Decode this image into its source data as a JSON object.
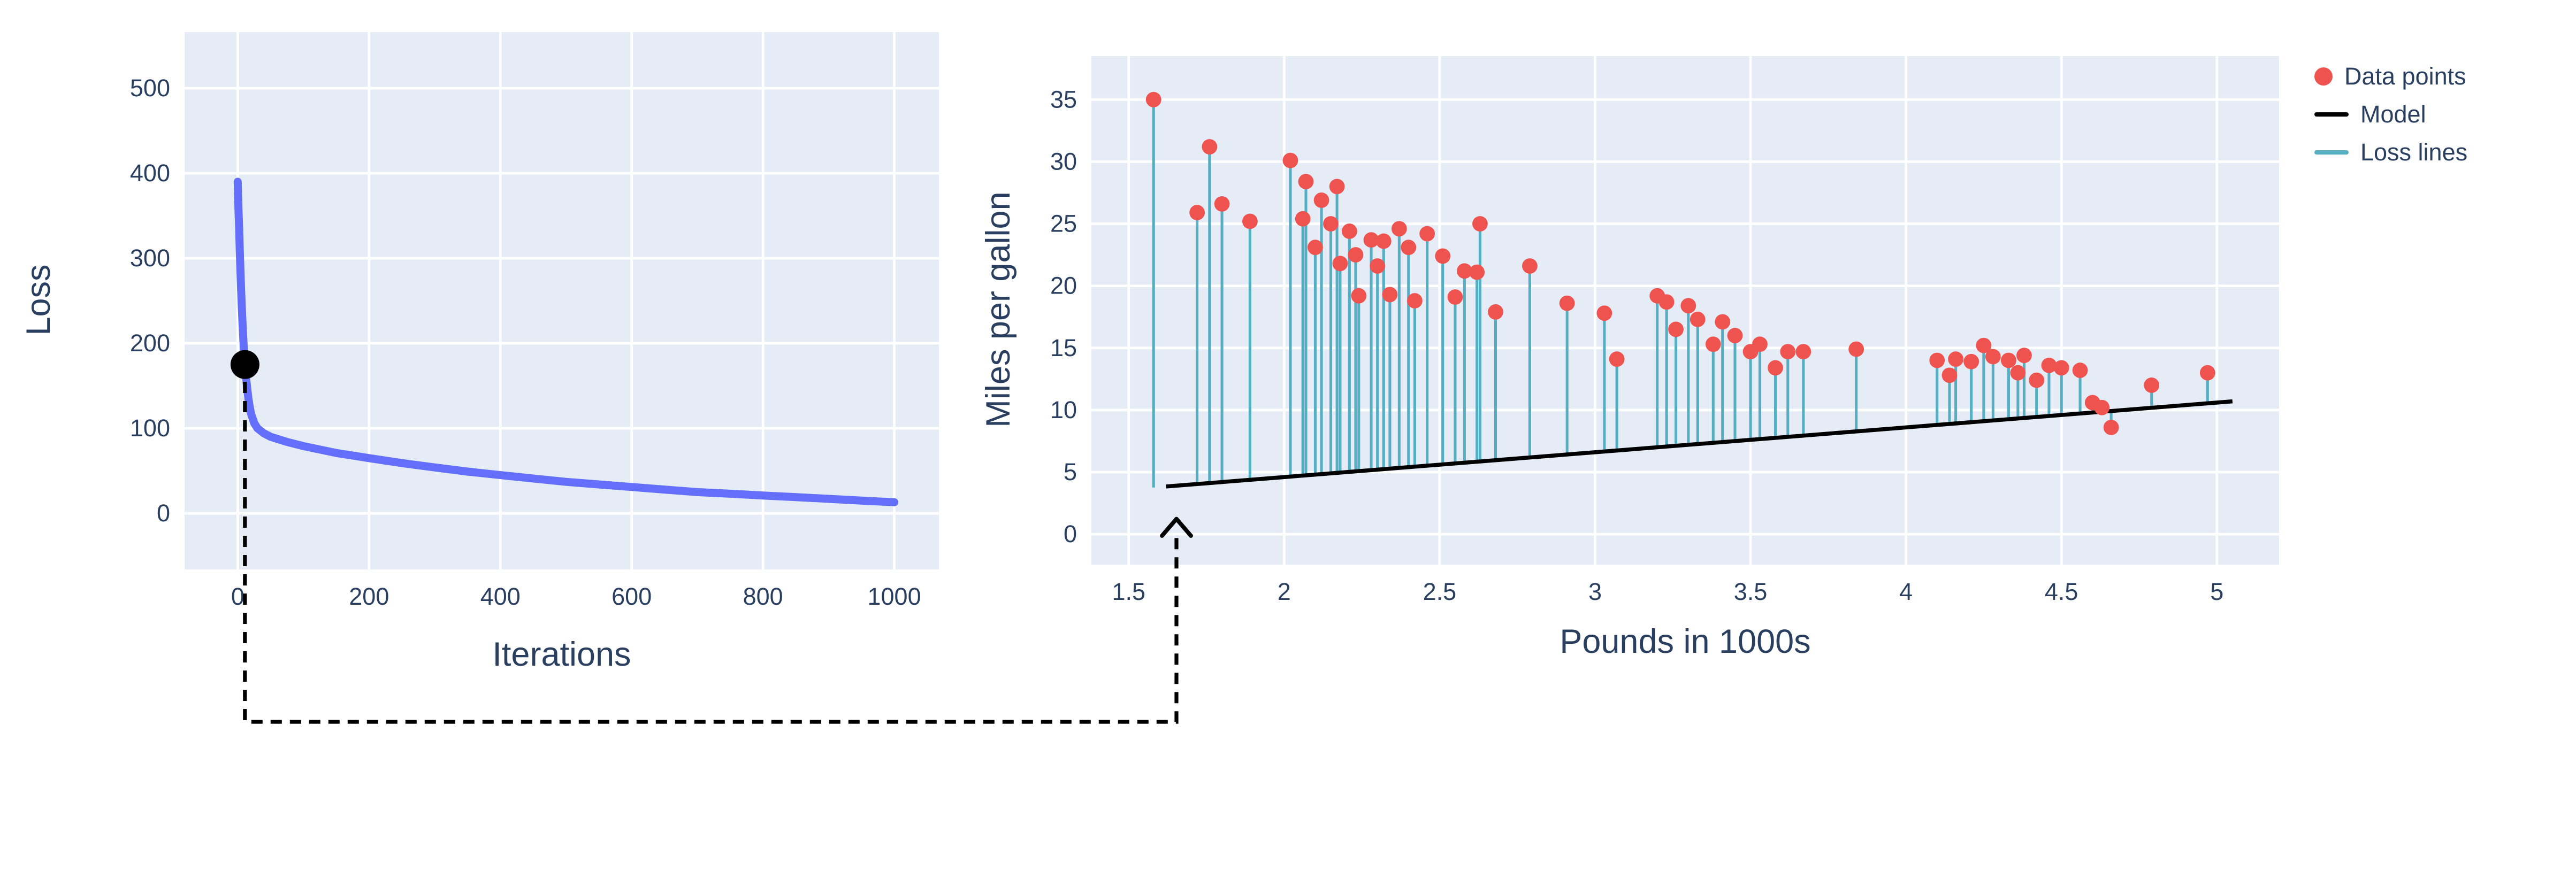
{
  "style": {
    "panel_color": "#e5ecf6",
    "grid_color": "#ffffff",
    "text_color": "#2a3f5f"
  },
  "chart_data": [
    {
      "id": "loss_curve",
      "type": "line",
      "xlabel": "Iterations",
      "ylabel": "Loss",
      "xlim": [
        -81,
        1068
      ],
      "ylim": [
        -66,
        566
      ],
      "x_ticks": [
        0,
        200,
        400,
        600,
        800,
        1000
      ],
      "x_tick_labels": [
        "0",
        "200",
        "400",
        "600",
        "800",
        "1000"
      ],
      "y_ticks": [
        0,
        100,
        200,
        300,
        400,
        500
      ],
      "y_tick_labels": [
        "0",
        "100",
        "200",
        "300",
        "400",
        "500"
      ],
      "grid": true,
      "line_color": "#636efa",
      "points": [
        [
          0,
          390
        ],
        [
          1,
          362
        ],
        [
          2,
          335
        ],
        [
          3,
          309
        ],
        [
          4,
          286
        ],
        [
          5,
          264
        ],
        [
          6,
          245
        ],
        [
          7,
          228
        ],
        [
          8,
          212
        ],
        [
          9,
          198
        ],
        [
          10,
          186
        ],
        [
          12,
          165
        ],
        [
          14,
          149
        ],
        [
          16,
          136
        ],
        [
          18,
          126
        ],
        [
          20,
          118
        ],
        [
          25,
          106
        ],
        [
          30,
          100
        ],
        [
          40,
          94
        ],
        [
          50,
          90
        ],
        [
          75,
          84
        ],
        [
          100,
          79
        ],
        [
          150,
          71
        ],
        [
          200,
          65
        ],
        [
          250,
          59
        ],
        [
          300,
          54
        ],
        [
          350,
          49
        ],
        [
          400,
          45
        ],
        [
          450,
          41
        ],
        [
          500,
          37
        ],
        [
          550,
          34
        ],
        [
          600,
          31
        ],
        [
          650,
          28
        ],
        [
          700,
          25
        ],
        [
          750,
          23
        ],
        [
          800,
          21
        ],
        [
          850,
          19
        ],
        [
          900,
          17
        ],
        [
          950,
          15
        ],
        [
          1000,
          13
        ]
      ],
      "marker": {
        "x": 11,
        "y": 175,
        "color": "#000000"
      }
    },
    {
      "id": "model_fit",
      "type": "scatter",
      "xlabel": "Pounds in 1000s",
      "ylabel": "Miles per gallon",
      "xlim": [
        1.38,
        5.2
      ],
      "ylim": [
        -2.45,
        38.5
      ],
      "x_ticks": [
        1.5,
        2,
        2.5,
        3,
        3.5,
        4,
        4.5,
        5
      ],
      "x_tick_labels": [
        "1.5",
        "2",
        "2.5",
        "3",
        "3.5",
        "4",
        "4.5",
        "5"
      ],
      "y_ticks": [
        0,
        5,
        10,
        15,
        20,
        25,
        30,
        35
      ],
      "y_tick_labels": [
        "0",
        "5",
        "10",
        "15",
        "20",
        "25",
        "30",
        "35"
      ],
      "grid": true,
      "point_color": "#ef5350",
      "loss_line_color": "#56aec2",
      "model_color": "#000000",
      "model": {
        "slope": 2.0,
        "intercept": 0.6,
        "x_start": 1.62,
        "x_end": 5.05
      },
      "points": [
        [
          1.58,
          35.0
        ],
        [
          1.76,
          31.2
        ],
        [
          1.72,
          25.9
        ],
        [
          1.8,
          26.6
        ],
        [
          1.89,
          25.2
        ],
        [
          2.02,
          30.1
        ],
        [
          2.07,
          28.4
        ],
        [
          2.06,
          25.4
        ],
        [
          2.12,
          26.9
        ],
        [
          2.1,
          23.1
        ],
        [
          2.15,
          25.0
        ],
        [
          2.17,
          28.0
        ],
        [
          2.18,
          21.8
        ],
        [
          2.21,
          24.4
        ],
        [
          2.23,
          22.5
        ],
        [
          2.24,
          19.2
        ],
        [
          2.28,
          23.7
        ],
        [
          2.3,
          21.6
        ],
        [
          2.32,
          23.6
        ],
        [
          2.34,
          19.3
        ],
        [
          2.37,
          24.6
        ],
        [
          2.4,
          23.1
        ],
        [
          2.42,
          18.8
        ],
        [
          2.46,
          24.2
        ],
        [
          2.51,
          22.4
        ],
        [
          2.55,
          19.1
        ],
        [
          2.58,
          21.2
        ],
        [
          2.62,
          21.1
        ],
        [
          2.63,
          25.0
        ],
        [
          2.68,
          17.9
        ],
        [
          2.79,
          21.6
        ],
        [
          2.91,
          18.6
        ],
        [
          3.03,
          17.8
        ],
        [
          3.07,
          14.1
        ],
        [
          3.2,
          19.2
        ],
        [
          3.23,
          18.7
        ],
        [
          3.26,
          16.5
        ],
        [
          3.3,
          18.4
        ],
        [
          3.33,
          17.3
        ],
        [
          3.38,
          15.3
        ],
        [
          3.41,
          17.1
        ],
        [
          3.45,
          16.0
        ],
        [
          3.5,
          14.7
        ],
        [
          3.53,
          15.3
        ],
        [
          3.58,
          13.4
        ],
        [
          3.62,
          14.7
        ],
        [
          3.67,
          14.7
        ],
        [
          3.84,
          14.9
        ],
        [
          4.1,
          14.0
        ],
        [
          4.14,
          12.8
        ],
        [
          4.16,
          14.1
        ],
        [
          4.21,
          13.9
        ],
        [
          4.25,
          15.2
        ],
        [
          4.28,
          14.3
        ],
        [
          4.33,
          14.0
        ],
        [
          4.36,
          13.0
        ],
        [
          4.38,
          14.4
        ],
        [
          4.42,
          12.4
        ],
        [
          4.46,
          13.6
        ],
        [
          4.5,
          13.4
        ],
        [
          4.56,
          13.2
        ],
        [
          4.6,
          10.6
        ],
        [
          4.63,
          10.2
        ],
        [
          4.66,
          8.6
        ],
        [
          4.79,
          12.0
        ],
        [
          4.97,
          13.0
        ]
      ],
      "legend": [
        {
          "label": "Data points",
          "type": "marker",
          "color": "#ef5350"
        },
        {
          "label": "Model",
          "type": "line",
          "color": "#000000"
        },
        {
          "label": "Loss lines",
          "type": "line",
          "color": "#56aec2"
        }
      ],
      "legend_position": "right"
    }
  ],
  "connector": {
    "description_color": "#000000"
  }
}
